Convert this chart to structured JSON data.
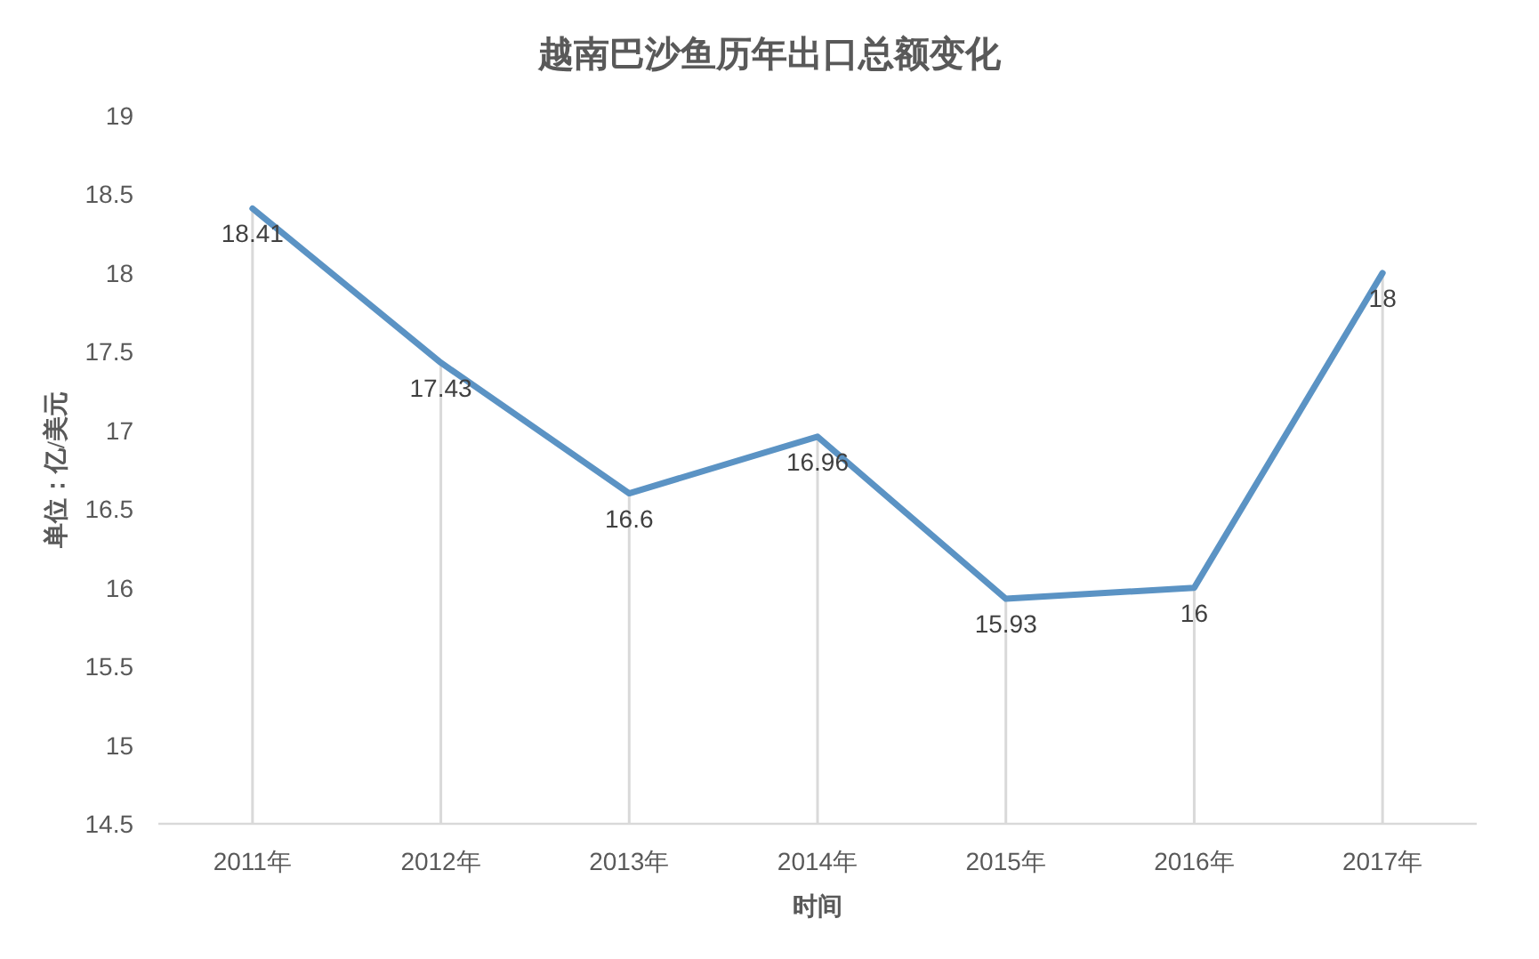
{
  "chart_data": {
    "type": "line",
    "title": "越南巴沙鱼历年出口总额变化",
    "xlabel": "时间",
    "ylabel": "单位：亿/美元",
    "categories": [
      "2011年",
      "2012年",
      "2013年",
      "2014年",
      "2015年",
      "2016年",
      "2017年"
    ],
    "series": [
      {
        "type": "bar",
        "color": "#d9d9d9",
        "values": [
          18.41,
          17.43,
          16.6,
          16.96,
          15.93,
          16,
          18
        ]
      },
      {
        "color": "#5b93c4",
        "values": [
          18.41,
          17.43,
          16.6,
          16.96,
          15.93,
          16,
          18
        ],
        "value_labels": [
          "18.41",
          "17.43",
          "16.6",
          "16.96",
          "15.93",
          "16",
          "18"
        ]
      }
    ],
    "ylim": [
      14.5,
      19
    ],
    "yticks": [
      14.5,
      15,
      15.5,
      16,
      16.5,
      17,
      17.5,
      18,
      18.5,
      19
    ]
  }
}
